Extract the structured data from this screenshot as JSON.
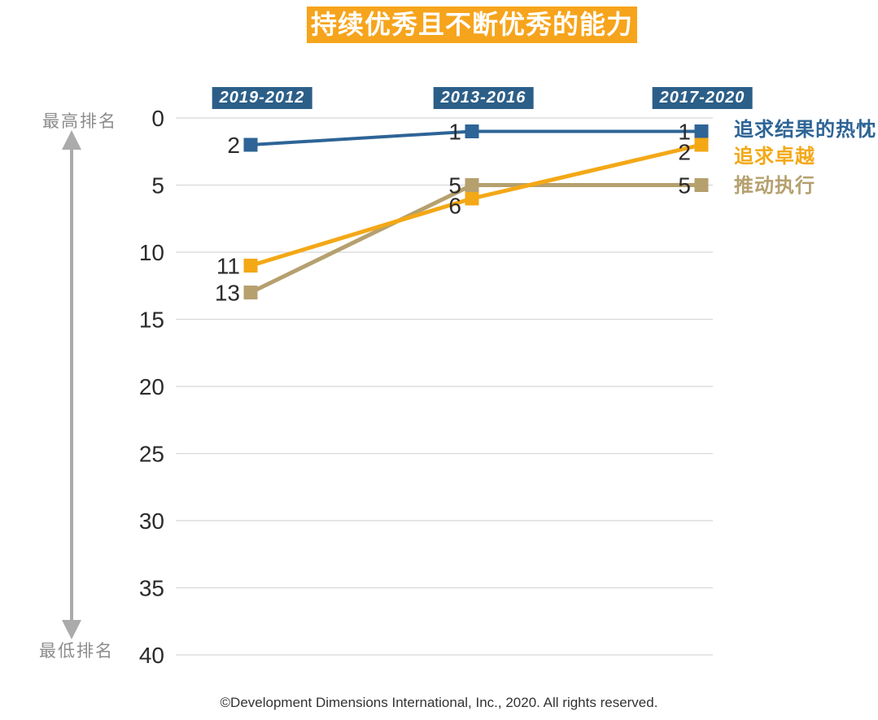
{
  "title": "持续优秀且不断优秀的能力",
  "y_axis": {
    "top_label": "最高排名",
    "bottom_label": "最低排名"
  },
  "footer": "©Development Dimensions International, Inc., 2020. All rights reserved.",
  "colors": {
    "title_bg": "#F6A41C",
    "title_text": "#FFFFFF",
    "period_bg": "#2C5F88",
    "period_text": "#FFFFFF",
    "grid": "#D8D8D8",
    "tick_text": "#2B2B2B",
    "axis_label": "#8C8C8C",
    "arrow": "#ABABAB",
    "footer_text": "#333333"
  },
  "chart_data": {
    "type": "line",
    "title": "持续优秀且不断优秀的能力",
    "categories": [
      "2019-2012",
      "2013-2016",
      "2017-2020"
    ],
    "yticks": [
      0,
      5,
      10,
      15,
      20,
      25,
      30,
      35,
      40
    ],
    "ylim": [
      0,
      40
    ],
    "y_axis_inverted": true,
    "ylabel_top": "最高排名",
    "ylabel_bottom": "最低排名",
    "grid": true,
    "legend_position": "right",
    "marker": "square",
    "series": [
      {
        "name": "追求结果的热忱",
        "color": "#2E6496",
        "values": [
          2,
          1,
          1
        ]
      },
      {
        "name": "追求卓越",
        "color": "#F3A816",
        "values": [
          11,
          6,
          2
        ]
      },
      {
        "name": "推动执行",
        "color": "#B5A06E",
        "values": [
          13,
          5,
          5
        ]
      }
    ]
  }
}
